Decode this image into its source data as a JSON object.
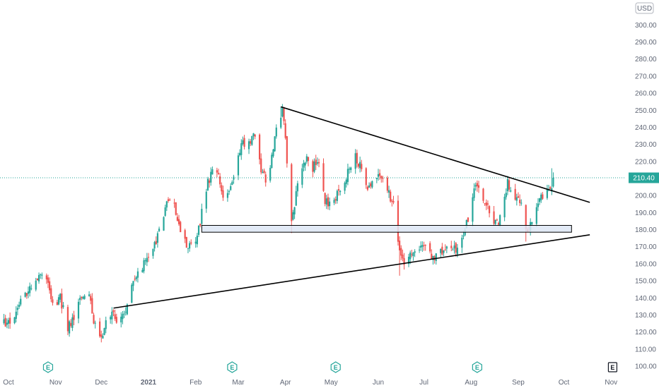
{
  "chart_data": {
    "type": "candlestick",
    "currency_label": "USD",
    "last_price_label": "210.40",
    "last_price": 210.4,
    "ylim": [
      100,
      310
    ],
    "y_ticks": [
      300,
      290,
      280,
      270,
      260,
      250,
      240,
      230,
      220,
      210,
      200,
      190,
      180,
      170,
      160,
      150,
      140,
      130,
      120,
      110,
      100
    ],
    "y_tick_labels": [
      "300.00",
      "290.00",
      "280.00",
      "270.00",
      "260.00",
      "250.00",
      "240.00",
      "230.00",
      "220.00",
      "210.00",
      "200.00",
      "190.00",
      "180.00",
      "170.00",
      "160.00",
      "150.00",
      "140.00",
      "130.00",
      "120.00",
      "110.00",
      "100.00"
    ],
    "x_axis_labels": [
      {
        "label": "Oct",
        "date": "2020-10-01"
      },
      {
        "label": "Nov",
        "date": "2020-11-01"
      },
      {
        "label": "Dec",
        "date": "2020-12-01"
      },
      {
        "label": "2021",
        "date": "2021-01-01"
      },
      {
        "label": "Feb",
        "date": "2021-02-01"
      },
      {
        "label": "Mar",
        "date": "2021-03-01"
      },
      {
        "label": "Apr",
        "date": "2021-04-01"
      },
      {
        "label": "May",
        "date": "2021-05-01"
      },
      {
        "label": "Jun",
        "date": "2021-06-01"
      },
      {
        "label": "Jul",
        "date": "2021-07-01"
      },
      {
        "label": "Aug",
        "date": "2021-08-01"
      },
      {
        "label": "Sep",
        "date": "2021-09-01"
      },
      {
        "label": "Oct",
        "date": "2021-10-01"
      },
      {
        "label": "Nov",
        "date": "2021-11-01"
      }
    ],
    "earnings_markers": [
      {
        "label": "E",
        "date": "2020-10-27",
        "style": "past"
      },
      {
        "label": "E",
        "date": "2021-02-25",
        "style": "past"
      },
      {
        "label": "E",
        "date": "2021-05-04",
        "style": "past"
      },
      {
        "label": "E",
        "date": "2021-08-05",
        "style": "past"
      },
      {
        "label": "E",
        "date": "2021-11-02",
        "style": "upcoming"
      }
    ],
    "close_path": [
      [
        "2020-09-28",
        125
      ],
      [
        "2020-10-05",
        128
      ],
      [
        "2020-10-09",
        137
      ],
      [
        "2020-10-14",
        143
      ],
      [
        "2020-10-20",
        152
      ],
      [
        "2020-10-23",
        153
      ],
      [
        "2020-10-27",
        148
      ],
      [
        "2020-10-30",
        136
      ],
      [
        "2020-11-04",
        140
      ],
      [
        "2020-11-09",
        122
      ],
      [
        "2020-11-13",
        130
      ],
      [
        "2020-11-18",
        140
      ],
      [
        "2020-11-23",
        145
      ],
      [
        "2020-11-26",
        126
      ],
      [
        "2020-11-30",
        115
      ],
      [
        "2020-12-04",
        125
      ],
      [
        "2020-12-08",
        130
      ],
      [
        "2020-12-12",
        126
      ],
      [
        "2020-12-17",
        133
      ],
      [
        "2020-12-22",
        150
      ],
      [
        "2020-12-28",
        158
      ],
      [
        "2021-01-01",
        163
      ],
      [
        "2021-01-05",
        170
      ],
      [
        "2021-01-09",
        183
      ],
      [
        "2021-01-13",
        195
      ],
      [
        "2021-01-16",
        197
      ],
      [
        "2021-01-19",
        190
      ],
      [
        "2021-01-22",
        179
      ],
      [
        "2021-01-26",
        172
      ],
      [
        "2021-01-30",
        168
      ],
      [
        "2021-02-02",
        175
      ],
      [
        "2021-02-05",
        190
      ],
      [
        "2021-02-08",
        205
      ],
      [
        "2021-02-11",
        213
      ],
      [
        "2021-02-14",
        218
      ],
      [
        "2021-02-17",
        207
      ],
      [
        "2021-02-20",
        196
      ],
      [
        "2021-02-23",
        200
      ],
      [
        "2021-02-27",
        216
      ],
      [
        "2021-03-03",
        232
      ],
      [
        "2021-03-07",
        228
      ],
      [
        "2021-03-11",
        237
      ],
      [
        "2021-03-14",
        223
      ],
      [
        "2021-03-17",
        212
      ],
      [
        "2021-03-21",
        208
      ],
      [
        "2021-03-24",
        228
      ],
      [
        "2021-03-27",
        243
      ],
      [
        "2021-03-30",
        250
      ],
      [
        "2021-04-01",
        232
      ],
      [
        "2021-04-03",
        208
      ],
      [
        "2021-04-05",
        185
      ],
      [
        "2021-04-08",
        200
      ],
      [
        "2021-04-11",
        215
      ],
      [
        "2021-04-15",
        224
      ],
      [
        "2021-04-19",
        216
      ],
      [
        "2021-04-23",
        220
      ],
      [
        "2021-04-27",
        198
      ],
      [
        "2021-05-01",
        193
      ],
      [
        "2021-05-05",
        202
      ],
      [
        "2021-05-09",
        206
      ],
      [
        "2021-05-13",
        216
      ],
      [
        "2021-05-17",
        222
      ],
      [
        "2021-05-21",
        215
      ],
      [
        "2021-05-25",
        202
      ],
      [
        "2021-05-29",
        210
      ],
      [
        "2021-06-02",
        213
      ],
      [
        "2021-06-06",
        204
      ],
      [
        "2021-06-10",
        197
      ],
      [
        "2021-06-13",
        185
      ],
      [
        "2021-06-15",
        166
      ],
      [
        "2021-06-18",
        160
      ],
      [
        "2021-06-22",
        165
      ],
      [
        "2021-06-25",
        167
      ],
      [
        "2021-06-29",
        172
      ],
      [
        "2021-07-03",
        168
      ],
      [
        "2021-07-07",
        164
      ],
      [
        "2021-07-11",
        167
      ],
      [
        "2021-07-15",
        166
      ],
      [
        "2021-07-19",
        171
      ],
      [
        "2021-07-23",
        167
      ],
      [
        "2021-07-26",
        175
      ],
      [
        "2021-07-29",
        183
      ],
      [
        "2021-08-01",
        195
      ],
      [
        "2021-08-04",
        205
      ],
      [
        "2021-08-07",
        200
      ],
      [
        "2021-08-10",
        196
      ],
      [
        "2021-08-13",
        190
      ],
      [
        "2021-08-16",
        185
      ],
      [
        "2021-08-19",
        182
      ],
      [
        "2021-08-22",
        196
      ],
      [
        "2021-08-25",
        207
      ],
      [
        "2021-08-28",
        201
      ],
      [
        "2021-08-31",
        196
      ],
      [
        "2021-09-02",
        198
      ],
      [
        "2021-09-05",
        184
      ],
      [
        "2021-09-08",
        178
      ],
      [
        "2021-09-10",
        187
      ],
      [
        "2021-09-13",
        193
      ],
      [
        "2021-09-16",
        199
      ],
      [
        "2021-09-19",
        200
      ],
      [
        "2021-09-22",
        203
      ],
      [
        "2021-09-24",
        210.4
      ]
    ],
    "wick_extremes": [
      {
        "date": "2021-03-29",
        "high": 252
      },
      {
        "date": "2021-04-05",
        "low": 178
      },
      {
        "date": "2021-06-15",
        "low": 153
      },
      {
        "date": "2021-09-06",
        "low": 173
      },
      {
        "date": "2021-09-23",
        "high": 216
      }
    ],
    "bull_color": "#26a69a",
    "bear_color": "#ef5350",
    "drawings": {
      "upper_trendline": {
        "start": [
          "2021-03-29",
          252
        ],
        "end": [
          "2021-10-18",
          196
        ]
      },
      "lower_trendline": {
        "start": [
          "2020-12-09",
          134
        ],
        "end": [
          "2021-10-18",
          177
        ]
      },
      "support_zone": {
        "start": "2021-02-05",
        "end": "2021-10-06",
        "bottom": 178.5,
        "top": 182.5
      }
    }
  }
}
